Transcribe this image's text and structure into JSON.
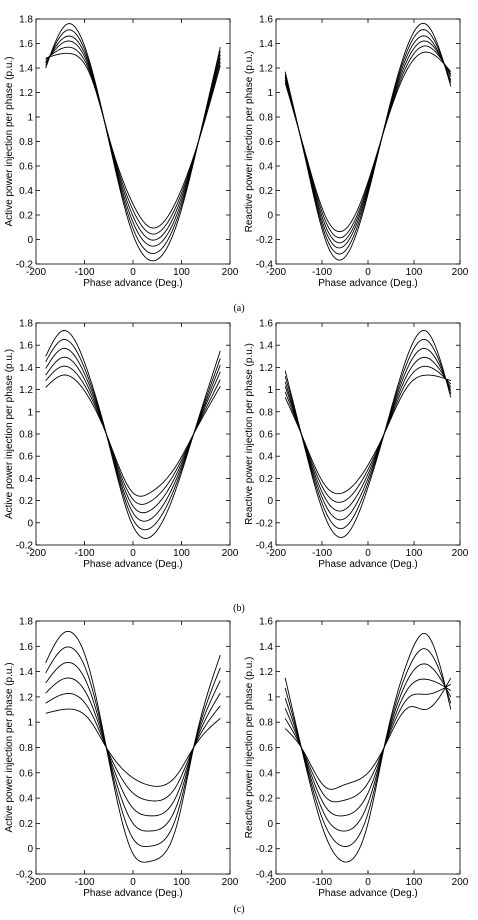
{
  "panels": [
    {
      "caption": "(a)"
    },
    {
      "caption": "(b)"
    },
    {
      "caption": "(c)"
    }
  ],
  "chart_data": [
    {
      "type": "line",
      "panel": "(a)",
      "xlabel": "Phase advance (Deg.)",
      "ylabel": "Active power injection per phase (p.u.)",
      "xlim": [
        -200,
        200
      ],
      "ylim": [
        -0.2,
        1.8
      ],
      "xticks": [
        -200,
        -100,
        0,
        100,
        200
      ],
      "yticks": [
        -0.2,
        0,
        0.2,
        0.4,
        0.6,
        0.8,
        1,
        1.2,
        1.4,
        1.6,
        1.8
      ],
      "x_range": [
        -180,
        180
      ],
      "series": [
        {
          "values_at": [
            -180,
            -135,
            -90,
            -45,
            0,
            35,
            90,
            135,
            180
          ],
          "values": [
            1.4,
            1.76,
            1.46,
            0.72,
            0.04,
            -0.17,
            0.12,
            0.8,
            1.57
          ]
        },
        {
          "values_at": [
            -180,
            -135,
            -90,
            -45,
            0,
            35,
            90,
            135,
            180
          ],
          "values": [
            1.42,
            1.71,
            1.44,
            0.73,
            0.09,
            -0.11,
            0.16,
            0.8,
            1.54
          ]
        },
        {
          "values_at": [
            -180,
            -135,
            -90,
            -45,
            0,
            35,
            90,
            135,
            180
          ],
          "values": [
            1.44,
            1.66,
            1.42,
            0.74,
            0.14,
            -0.05,
            0.2,
            0.8,
            1.51
          ]
        },
        {
          "values_at": [
            -180,
            -135,
            -90,
            -45,
            0,
            35,
            90,
            135,
            180
          ],
          "values": [
            1.45,
            1.62,
            1.4,
            0.75,
            0.19,
            0.0,
            0.24,
            0.8,
            1.48
          ]
        },
        {
          "values_at": [
            -180,
            -135,
            -90,
            -45,
            0,
            35,
            90,
            135,
            180
          ],
          "values": [
            1.47,
            1.57,
            1.38,
            0.76,
            0.24,
            0.05,
            0.28,
            0.8,
            1.45
          ]
        },
        {
          "values_at": [
            -180,
            -135,
            -90,
            -45,
            0,
            35,
            90,
            135,
            180
          ],
          "values": [
            1.48,
            1.52,
            1.36,
            0.77,
            0.29,
            0.1,
            0.32,
            0.8,
            1.42
          ]
        }
      ]
    },
    {
      "type": "line",
      "panel": "(a)",
      "xlabel": "Phase advance (Deg.)",
      "ylabel": "Reactive power injection per phase (p.u.)",
      "xlim": [
        -200,
        200
      ],
      "ylim": [
        -0.4,
        1.6
      ],
      "xticks": [
        -200,
        -100,
        0,
        100,
        200
      ],
      "yticks": [
        -0.4,
        -0.2,
        0,
        0.2,
        0.4,
        0.6,
        0.8,
        1,
        1.2,
        1.4,
        1.6
      ],
      "x_range": [
        -180,
        180
      ],
      "series": [
        {
          "values_at": [
            -180,
            -135,
            -90,
            -55,
            0,
            45,
            90,
            125,
            180
          ],
          "values": [
            1.17,
            0.44,
            -0.23,
            -0.36,
            0.17,
            0.86,
            1.42,
            1.56,
            1.05
          ]
        },
        {
          "values_at": [
            -180,
            -135,
            -90,
            -55,
            0,
            45,
            90,
            125,
            180
          ],
          "values": [
            1.15,
            0.45,
            -0.19,
            -0.31,
            0.19,
            0.85,
            1.38,
            1.51,
            1.08
          ]
        },
        {
          "values_at": [
            -180,
            -135,
            -90,
            -55,
            0,
            45,
            90,
            125,
            180
          ],
          "values": [
            1.13,
            0.46,
            -0.15,
            -0.26,
            0.21,
            0.84,
            1.34,
            1.46,
            1.1
          ]
        },
        {
          "values_at": [
            -180,
            -135,
            -90,
            -55,
            0,
            45,
            90,
            125,
            180
          ],
          "values": [
            1.12,
            0.47,
            -0.11,
            -0.22,
            0.23,
            0.83,
            1.3,
            1.42,
            1.13
          ]
        },
        {
          "values_at": [
            -180,
            -135,
            -90,
            -55,
            0,
            45,
            90,
            125,
            180
          ],
          "values": [
            1.1,
            0.48,
            -0.07,
            -0.18,
            0.25,
            0.82,
            1.26,
            1.38,
            1.15
          ]
        },
        {
          "values_at": [
            -180,
            -135,
            -90,
            -55,
            0,
            45,
            90,
            125,
            180
          ],
          "values": [
            1.08,
            0.49,
            -0.03,
            -0.13,
            0.27,
            0.81,
            1.22,
            1.33,
            1.17
          ]
        }
      ]
    },
    {
      "type": "line",
      "panel": "(b)",
      "xlabel": "Phase advance (Deg.)",
      "ylabel": "Active power injection per phase (p.u.)",
      "xlim": [
        -200,
        200
      ],
      "ylim": [
        -0.2,
        1.8
      ],
      "xticks": [
        -200,
        -100,
        0,
        100,
        200
      ],
      "yticks": [
        -0.2,
        0,
        0.2,
        0.4,
        0.6,
        0.8,
        1,
        1.2,
        1.4,
        1.6,
        1.8
      ],
      "x_range": [
        -180,
        180
      ],
      "series": [
        {
          "values_at": [
            -180,
            -145,
            -90,
            -55,
            0,
            35,
            90,
            125,
            180
          ],
          "values": [
            1.5,
            1.73,
            1.32,
            0.8,
            -0.03,
            -0.13,
            0.32,
            0.8,
            1.55
          ]
        },
        {
          "values_at": [
            -180,
            -145,
            -90,
            -55,
            0,
            35,
            90,
            125,
            180
          ],
          "values": [
            1.45,
            1.65,
            1.28,
            0.8,
            0.03,
            -0.05,
            0.36,
            0.8,
            1.48
          ]
        },
        {
          "values_at": [
            -180,
            -145,
            -90,
            -55,
            0,
            35,
            90,
            125,
            180
          ],
          "values": [
            1.39,
            1.57,
            1.24,
            0.8,
            0.09,
            0.03,
            0.4,
            0.8,
            1.42
          ]
        },
        {
          "values_at": [
            -180,
            -145,
            -90,
            -55,
            0,
            35,
            90,
            125,
            180
          ],
          "values": [
            1.33,
            1.49,
            1.2,
            0.8,
            0.15,
            0.11,
            0.44,
            0.8,
            1.36
          ]
        },
        {
          "values_at": [
            -180,
            -145,
            -90,
            -55,
            0,
            35,
            90,
            125,
            180
          ],
          "values": [
            1.28,
            1.41,
            1.16,
            0.8,
            0.21,
            0.19,
            0.48,
            0.8,
            1.29
          ]
        },
        {
          "values_at": [
            -180,
            -145,
            -90,
            -55,
            0,
            35,
            90,
            125,
            180
          ],
          "values": [
            1.22,
            1.33,
            1.12,
            0.8,
            0.27,
            0.27,
            0.52,
            0.8,
            1.23
          ]
        }
      ]
    },
    {
      "type": "line",
      "panel": "(b)",
      "xlabel": "Phase advance (Deg.)",
      "ylabel": "Reactive power injection per phase (p.u.)",
      "xlim": [
        -200,
        200
      ],
      "ylim": [
        -0.4,
        1.6
      ],
      "xticks": [
        -200,
        -100,
        0,
        100,
        200
      ],
      "yticks": [
        -0.4,
        -0.2,
        0,
        0.2,
        0.4,
        0.6,
        0.8,
        1,
        1.2,
        1.4,
        1.6
      ],
      "x_range": [
        -180,
        180
      ],
      "series": [
        {
          "values_at": [
            -180,
            -145,
            -90,
            -55,
            0,
            35,
            90,
            125,
            180
          ],
          "values": [
            1.17,
            0.6,
            -0.18,
            -0.33,
            0.12,
            0.6,
            1.35,
            1.53,
            0.93
          ]
        },
        {
          "values_at": [
            -180,
            -145,
            -90,
            -55,
            0,
            35,
            90,
            125,
            180
          ],
          "values": [
            1.12,
            0.6,
            -0.12,
            -0.25,
            0.16,
            0.6,
            1.29,
            1.45,
            0.96
          ]
        },
        {
          "values_at": [
            -180,
            -145,
            -90,
            -55,
            0,
            35,
            90,
            125,
            180
          ],
          "values": [
            1.07,
            0.6,
            -0.06,
            -0.17,
            0.2,
            0.6,
            1.23,
            1.37,
            0.99
          ]
        },
        {
          "values_at": [
            -180,
            -145,
            -90,
            -55,
            0,
            35,
            90,
            125,
            180
          ],
          "values": [
            1.03,
            0.6,
            0.0,
            -0.09,
            0.24,
            0.6,
            1.17,
            1.29,
            1.02
          ]
        },
        {
          "values_at": [
            -180,
            -145,
            -90,
            -55,
            0,
            35,
            90,
            125,
            180
          ],
          "values": [
            0.98,
            0.6,
            0.06,
            -0.01,
            0.28,
            0.6,
            1.11,
            1.21,
            1.05
          ]
        },
        {
          "values_at": [
            -180,
            -145,
            -90,
            -55,
            0,
            35,
            90,
            125,
            180
          ],
          "values": [
            0.93,
            0.6,
            0.12,
            0.07,
            0.32,
            0.6,
            1.05,
            1.13,
            1.08
          ]
        }
      ]
    },
    {
      "type": "line",
      "panel": "(c)",
      "xlabel": "Phase advance (Deg.)",
      "ylabel": "Active power injection per phase (p.u.)",
      "xlim": [
        -200,
        200
      ],
      "ylim": [
        -0.2,
        1.8
      ],
      "xticks": [
        -200,
        -100,
        0,
        100,
        200
      ],
      "yticks": [
        -0.2,
        0,
        0.2,
        0.4,
        0.6,
        0.8,
        1,
        1.2,
        1.4,
        1.6,
        1.8
      ],
      "x_range": [
        -180,
        180
      ],
      "series": [
        {
          "values_at": [
            -180,
            -145,
            -90,
            -55,
            0,
            35,
            90,
            125,
            180
          ],
          "values": [
            1.47,
            1.7,
            1.42,
            0.8,
            -0.04,
            -0.1,
            0.18,
            0.8,
            1.53
          ]
        },
        {
          "values_at": [
            -180,
            -145,
            -90,
            -55,
            0,
            35,
            90,
            125,
            180
          ],
          "values": [
            1.39,
            1.58,
            1.34,
            0.8,
            0.08,
            0.02,
            0.26,
            0.8,
            1.43
          ]
        },
        {
          "values_at": [
            -180,
            -145,
            -90,
            -55,
            0,
            35,
            90,
            125,
            180
          ],
          "values": [
            1.31,
            1.46,
            1.26,
            0.8,
            0.2,
            0.14,
            0.34,
            0.8,
            1.33
          ]
        },
        {
          "values_at": [
            -180,
            -145,
            -90,
            -55,
            0,
            35,
            90,
            125,
            180
          ],
          "values": [
            1.23,
            1.34,
            1.18,
            0.8,
            0.32,
            0.26,
            0.42,
            0.8,
            1.23
          ]
        },
        {
          "values_at": [
            -180,
            -145,
            -90,
            -55,
            0,
            35,
            90,
            125,
            180
          ],
          "values": [
            1.15,
            1.22,
            1.1,
            0.8,
            0.44,
            0.38,
            0.5,
            0.8,
            1.13
          ]
        },
        {
          "values_at": [
            -180,
            -145,
            -90,
            -55,
            0,
            35,
            90,
            125,
            180
          ],
          "values": [
            1.07,
            1.1,
            1.02,
            0.8,
            0.56,
            0.5,
            0.58,
            0.8,
            1.03
          ]
        }
      ]
    },
    {
      "type": "line",
      "panel": "(c)",
      "xlabel": "Phase advance (Deg.)",
      "ylabel": "Reactive power injection per phase (p.u.)",
      "xlim": [
        -200,
        200
      ],
      "ylim": [
        -0.4,
        1.6
      ],
      "xticks": [
        -200,
        -100,
        0,
        100,
        200
      ],
      "yticks": [
        -0.4,
        -0.2,
        0,
        0.2,
        0.4,
        0.6,
        0.8,
        1,
        1.2,
        1.4,
        1.6
      ],
      "x_range": [
        -180,
        180
      ],
      "series": [
        {
          "values_at": [
            -180,
            -145,
            -90,
            -55,
            0,
            35,
            90,
            125,
            180
          ],
          "values": [
            1.15,
            0.6,
            -0.12,
            -0.3,
            0.0,
            0.6,
            1.32,
            1.5,
            0.9
          ]
        },
        {
          "values_at": [
            -180,
            -145,
            -90,
            -55,
            0,
            35,
            90,
            125,
            180
          ],
          "values": [
            1.07,
            0.6,
            -0.04,
            -0.18,
            0.08,
            0.6,
            1.24,
            1.38,
            0.95
          ]
        },
        {
          "values_at": [
            -180,
            -145,
            -90,
            -55,
            0,
            35,
            90,
            125,
            180
          ],
          "values": [
            0.99,
            0.6,
            0.04,
            -0.06,
            0.16,
            0.6,
            1.16,
            1.26,
            1.0
          ]
        },
        {
          "values_at": [
            -180,
            -145,
            -90,
            -55,
            0,
            35,
            90,
            125,
            180
          ],
          "values": [
            0.91,
            0.6,
            0.12,
            0.06,
            0.24,
            0.6,
            1.08,
            1.14,
            1.05
          ]
        },
        {
          "values_at": [
            -180,
            -145,
            -90,
            -55,
            0,
            35,
            90,
            125,
            180
          ],
          "values": [
            0.83,
            0.6,
            0.2,
            0.18,
            0.32,
            0.6,
            1.0,
            1.02,
            1.1
          ]
        },
        {
          "values_at": [
            -180,
            -145,
            -90,
            -55,
            0,
            35,
            90,
            125,
            180
          ],
          "values": [
            0.75,
            0.6,
            0.28,
            0.3,
            0.4,
            0.6,
            0.92,
            0.9,
            1.15
          ]
        }
      ]
    }
  ]
}
